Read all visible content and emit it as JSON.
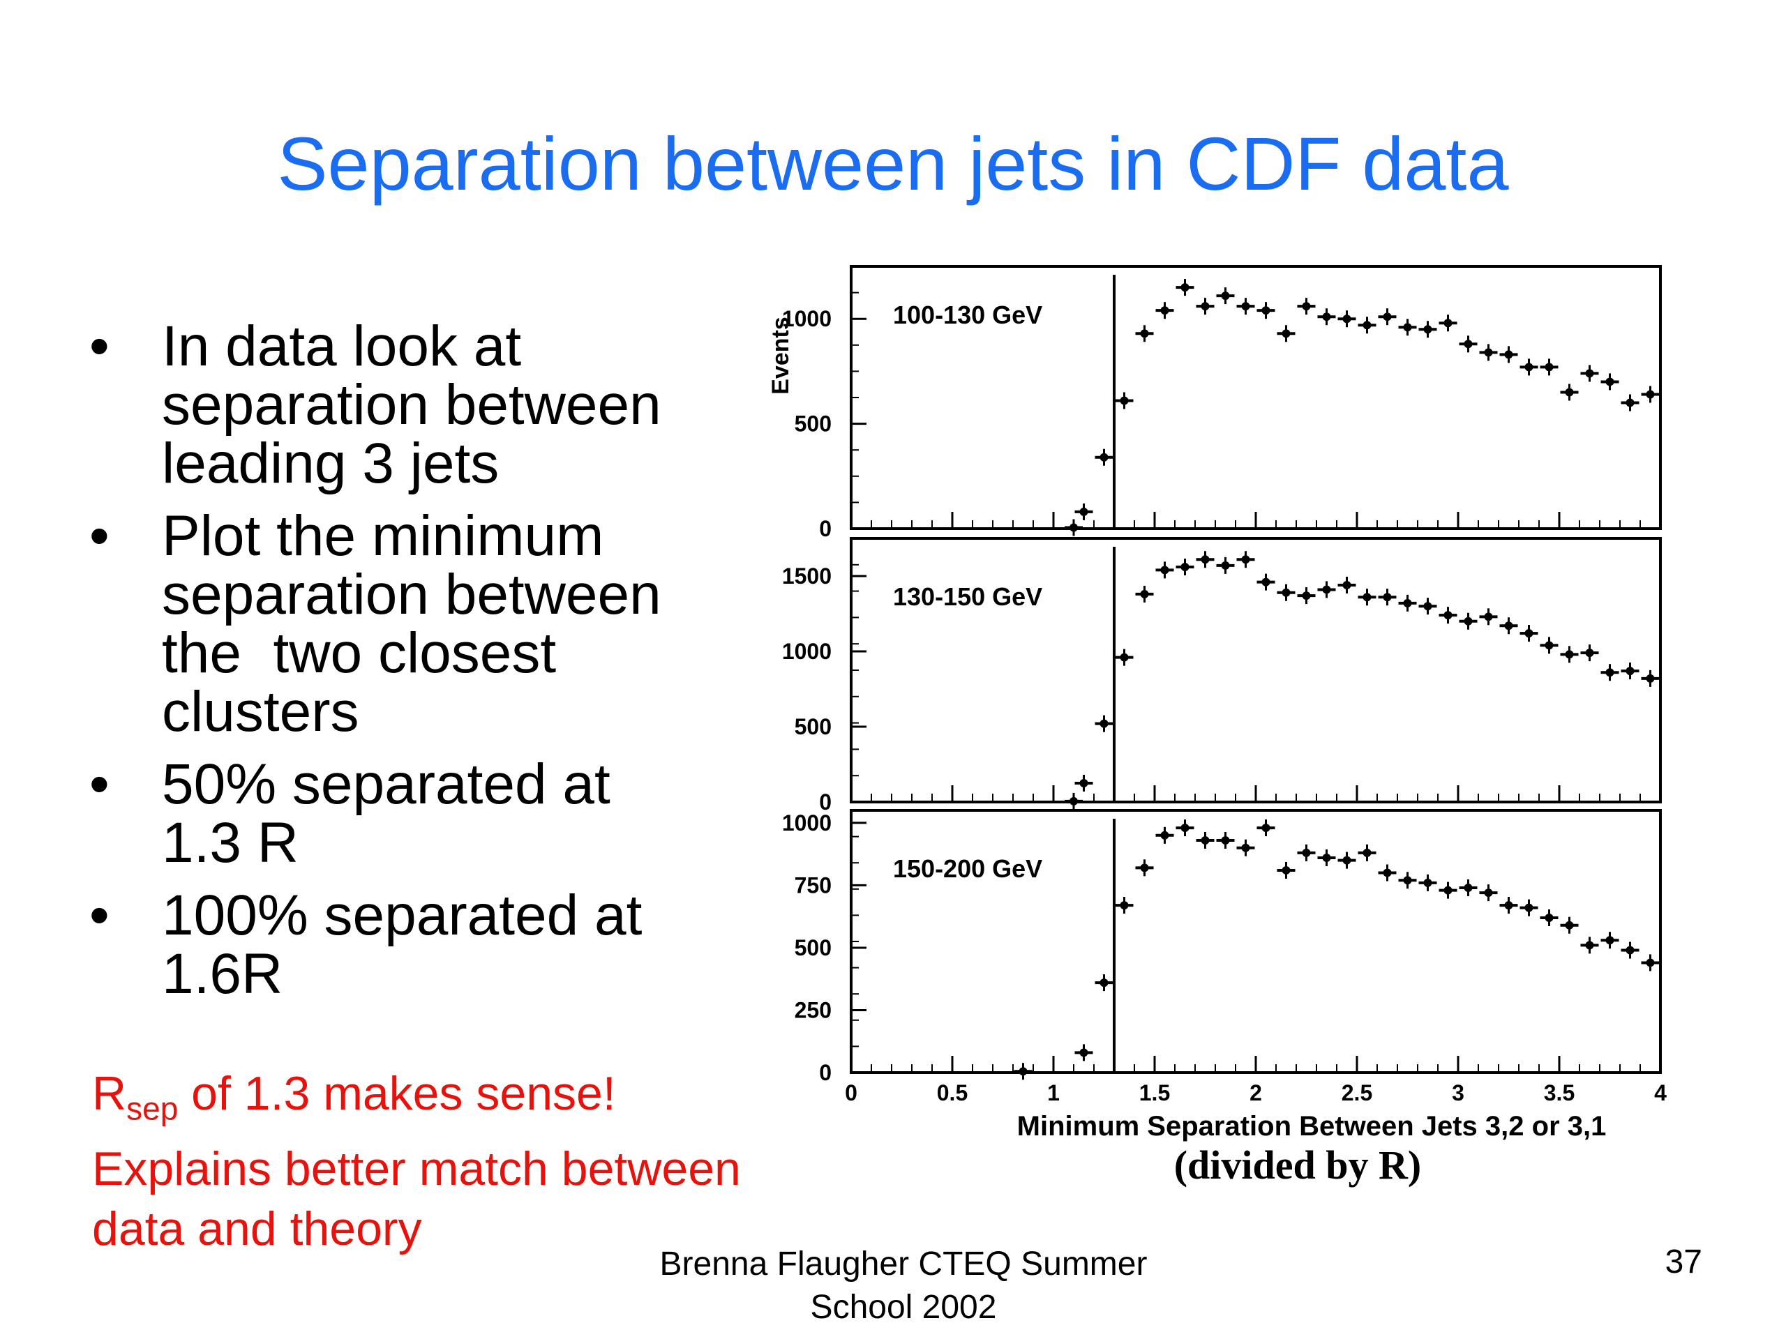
{
  "slide": {
    "title": "Separation between jets in CDF data",
    "bullets": [
      [
        "In data look at",
        "separation between",
        "leading 3 jets"
      ],
      [
        "Plot the minimum",
        "separation between",
        "the  two closest",
        "clusters"
      ],
      [
        "50% separated at",
        "1.3 R"
      ],
      [
        "100% separated at",
        "1.6R"
      ]
    ],
    "bullet_glyph": "•",
    "note": {
      "r_symbol": "R",
      "r_subscript": "sep",
      "line1_rest": " of 1.3 makes sense!",
      "line2": "Explains better match between",
      "line3": "data and theory"
    },
    "footer": [
      "Brenna Flaugher CTEQ Summer",
      "School 2002"
    ],
    "page_number": "37",
    "colors": {
      "title": "#1a6cf0",
      "note": "#e8120c",
      "text": "#000000"
    }
  },
  "chart_data": {
    "type": "scatter",
    "ylabel": "Events",
    "xlabel": "Minimum Separation Between Jets 3,2 or 3,1",
    "xlabel_note": "(divided by R)",
    "xlim": [
      0,
      4
    ],
    "x_ticks": [
      "0",
      "0.5",
      "1",
      "1.5",
      "2",
      "2.5",
      "3",
      "3.5",
      "4"
    ],
    "cut_x": 1.3,
    "panels": [
      {
        "label": "100-130 GeV",
        "ylim": [
          0,
          1250
        ],
        "y_ticks": [
          "0",
          "500",
          "1000"
        ],
        "x": [
          1.1,
          1.15,
          1.25,
          1.35,
          1.45,
          1.55,
          1.65,
          1.75,
          1.85,
          1.95,
          2.05,
          2.15,
          2.25,
          2.35,
          2.45,
          2.55,
          2.65,
          2.75,
          2.85,
          2.95,
          3.05,
          3.15,
          3.25,
          3.35,
          3.45,
          3.55,
          3.65,
          3.75,
          3.85,
          3.95
        ],
        "y": [
          5,
          80,
          340,
          610,
          930,
          1040,
          1150,
          1060,
          1110,
          1060,
          1040,
          930,
          1060,
          1010,
          1000,
          970,
          1010,
          960,
          950,
          980,
          880,
          840,
          830,
          770,
          770,
          650,
          740,
          700,
          600,
          640
        ]
      },
      {
        "label": "130-150 GeV",
        "ylim": [
          0,
          1750
        ],
        "y_ticks": [
          "0",
          "500",
          "1000",
          "1500"
        ],
        "x": [
          1.1,
          1.15,
          1.25,
          1.35,
          1.45,
          1.55,
          1.65,
          1.75,
          1.85,
          1.95,
          2.05,
          2.15,
          2.25,
          2.35,
          2.45,
          2.55,
          2.65,
          2.75,
          2.85,
          2.95,
          3.05,
          3.15,
          3.25,
          3.35,
          3.45,
          3.55,
          3.65,
          3.75,
          3.85,
          3.95
        ],
        "y": [
          5,
          125,
          520,
          960,
          1380,
          1540,
          1560,
          1610,
          1570,
          1610,
          1460,
          1390,
          1370,
          1410,
          1440,
          1360,
          1360,
          1320,
          1300,
          1240,
          1200,
          1230,
          1170,
          1120,
          1040,
          980,
          990,
          860,
          870,
          820
        ]
      },
      {
        "label": "150-200 GeV",
        "ylim": [
          0,
          1050
        ],
        "y_ticks": [
          "0",
          "250",
          "500",
          "750",
          "1000"
        ],
        "x": [
          0.85,
          1.15,
          1.25,
          1.35,
          1.45,
          1.55,
          1.65,
          1.75,
          1.85,
          1.95,
          2.05,
          2.15,
          2.25,
          2.35,
          2.45,
          2.55,
          2.65,
          2.75,
          2.85,
          2.95,
          3.05,
          3.15,
          3.25,
          3.35,
          3.45,
          3.55,
          3.65,
          3.75,
          3.85,
          3.95
        ],
        "y": [
          5,
          80,
          360,
          670,
          820,
          950,
          980,
          930,
          930,
          900,
          980,
          810,
          880,
          860,
          850,
          880,
          800,
          770,
          760,
          730,
          740,
          720,
          670,
          660,
          620,
          590,
          510,
          530,
          490,
          440
        ]
      }
    ]
  }
}
